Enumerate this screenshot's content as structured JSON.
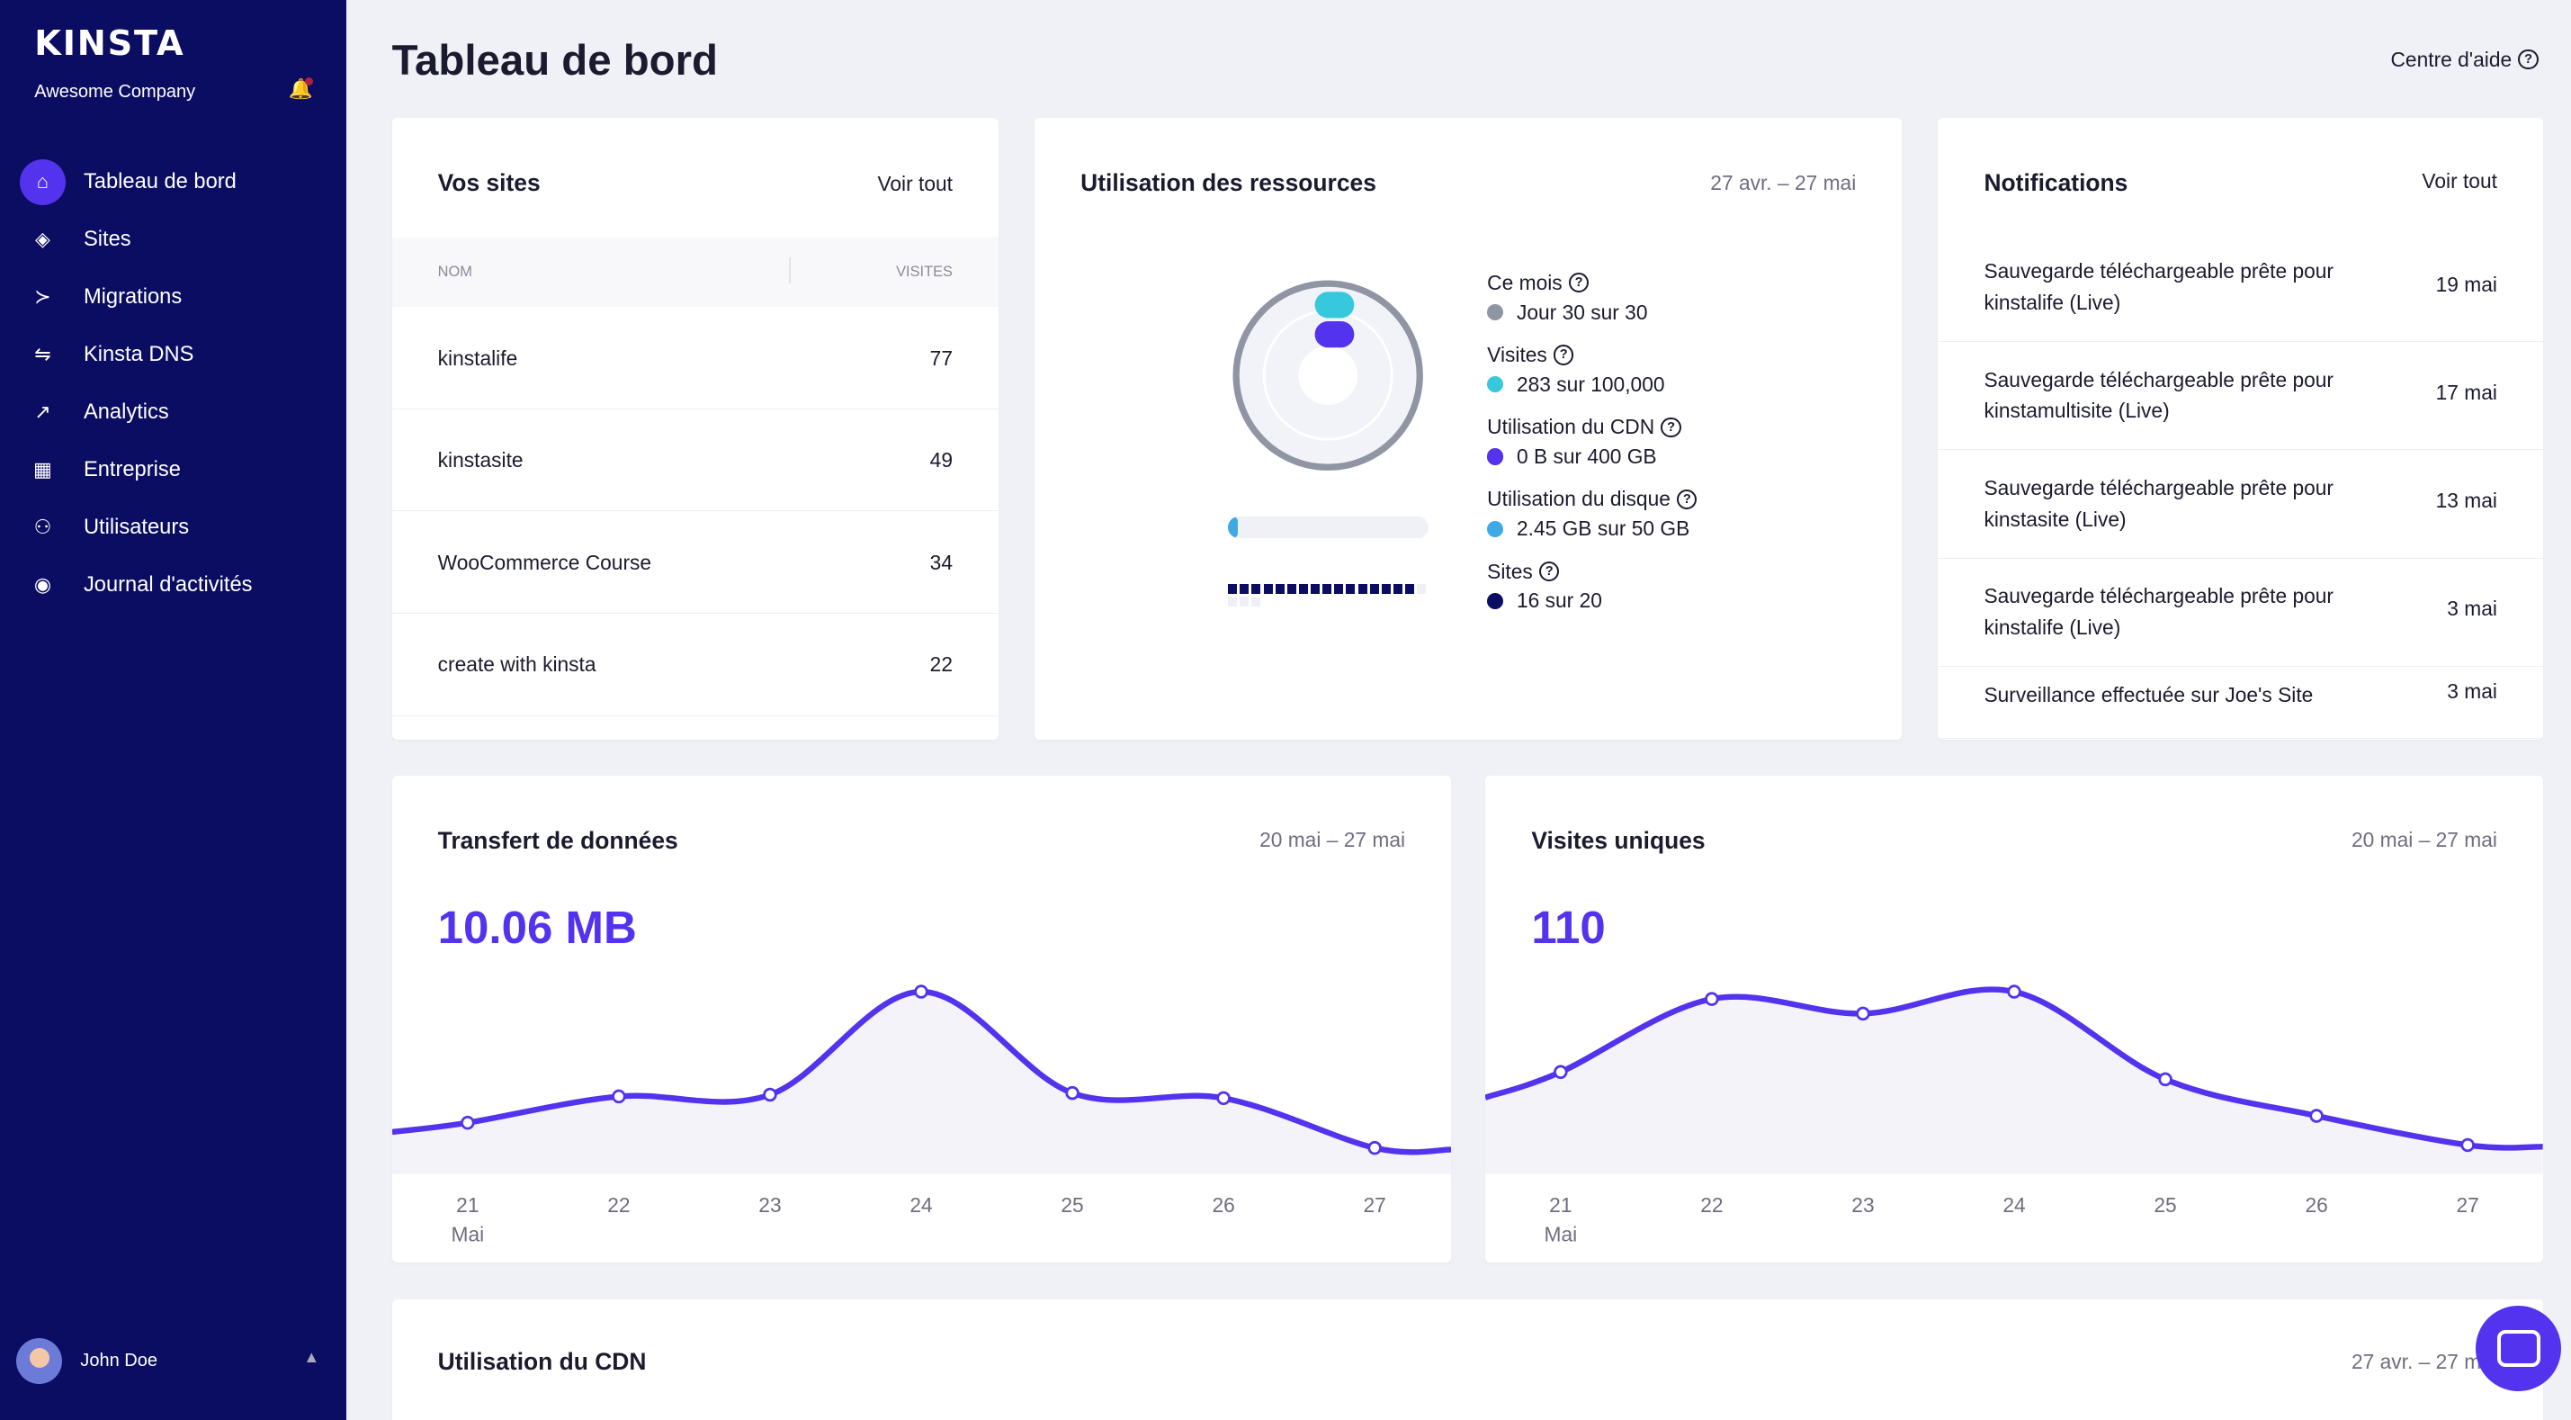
{
  "sidebar": {
    "logo": "KINSTA",
    "company": "Awesome Company",
    "items": [
      {
        "label": "Tableau de bord",
        "icon": "home-icon",
        "active": true
      },
      {
        "label": "Sites",
        "icon": "layers-icon"
      },
      {
        "label": "Migrations",
        "icon": "migration-icon"
      },
      {
        "label": "Kinsta DNS",
        "icon": "dns-icon"
      },
      {
        "label": "Analytics",
        "icon": "trend-icon"
      },
      {
        "label": "Entreprise",
        "icon": "building-icon"
      },
      {
        "label": "Utilisateurs",
        "icon": "user-plus-icon"
      },
      {
        "label": "Journal d'activités",
        "icon": "eye-icon"
      }
    ],
    "user": "John Doe"
  },
  "header": {
    "title": "Tableau de bord",
    "help": "Centre d'aide"
  },
  "sites_card": {
    "title": "Vos sites",
    "link": "Voir tout",
    "col_name": "NOM",
    "col_visits": "VISITES",
    "rows": [
      {
        "name": "kinstalife",
        "visits": "77"
      },
      {
        "name": "kinstasite",
        "visits": "49"
      },
      {
        "name": "WooCommerce Course",
        "visits": "34"
      },
      {
        "name": "create with kinsta",
        "visits": "22"
      }
    ]
  },
  "resources": {
    "title": "Utilisation des ressources",
    "date": "27 avr. – 27 mai",
    "items": [
      {
        "label": "Ce mois",
        "value": "Jour 30 sur 30",
        "color": "#8f95a3"
      },
      {
        "label": "Visites",
        "value": "283 sur 100,000",
        "color": "#37c8de"
      },
      {
        "label": "Utilisation du CDN",
        "value": "0 B sur 400 GB",
        "color": "#5333ed"
      },
      {
        "label": "Utilisation du disque",
        "value": "2.45 GB sur 50 GB",
        "color": "#3fa9e6"
      },
      {
        "label": "Sites",
        "value": "16 sur 20",
        "color": "#0b0d62"
      }
    ],
    "disk_fraction": 0.049,
    "sites_used": 16,
    "sites_total": 20
  },
  "notifications": {
    "title": "Notifications",
    "link": "Voir tout",
    "items": [
      {
        "text": "Sauvegarde téléchargeable prête pour kinstalife (Live)",
        "date": "19 mai"
      },
      {
        "text": "Sauvegarde téléchargeable prête pour kinstamultisite (Live)",
        "date": "17 mai"
      },
      {
        "text": "Sauvegarde téléchargeable prête pour kinstasite (Live)",
        "date": "13 mai"
      },
      {
        "text": "Sauvegarde téléchargeable prête pour kinstalife (Live)",
        "date": "3 mai"
      },
      {
        "text": "Surveillance effectuée sur Joe's Site",
        "date": "3 mai"
      }
    ]
  },
  "transfer": {
    "title": "Transfert de données",
    "date": "20 mai – 27 mai",
    "total": "10.06 MB"
  },
  "visits": {
    "title": "Visites uniques",
    "date": "20 mai – 27 mai",
    "total": "110"
  },
  "cdn": {
    "title": "Utilisation du CDN",
    "date": "27 avr. – 27 mai"
  },
  "chart_data": [
    {
      "type": "area",
      "x": [
        "21",
        "22",
        "23",
        "24",
        "25",
        "26",
        "27"
      ],
      "x_sublabel": "Mai",
      "values": [
        0.9,
        1.36,
        1.39,
        3.19,
        1.42,
        1.33,
        0.46
      ],
      "color": "#5333ed",
      "grid": false
    },
    {
      "type": "area",
      "x": [
        "21",
        "22",
        "23",
        "24",
        "25",
        "26",
        "27"
      ],
      "x_sublabel": "Mai",
      "values": [
        14,
        24,
        22,
        25,
        13,
        8,
        4
      ],
      "color": "#5333ed",
      "grid": false
    }
  ]
}
